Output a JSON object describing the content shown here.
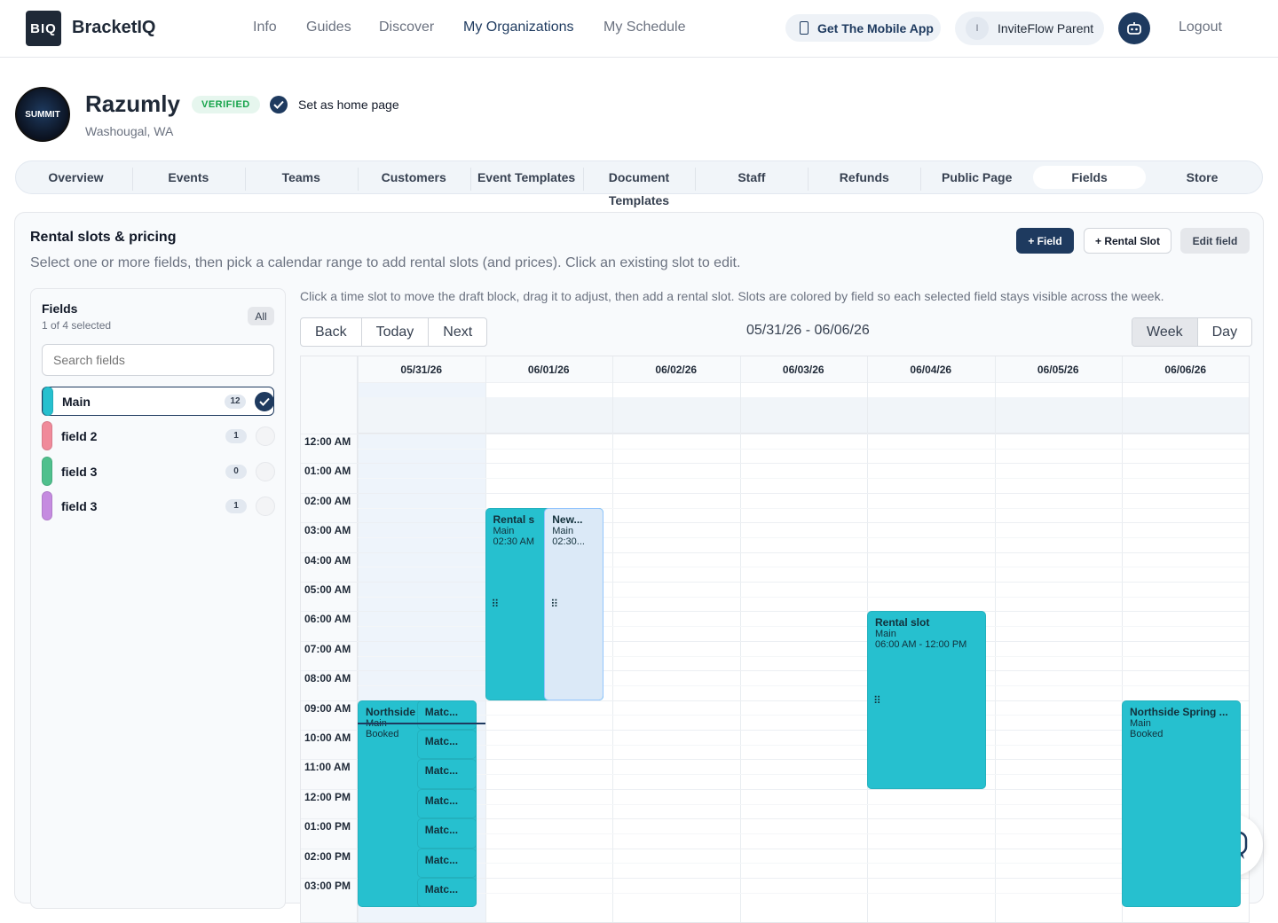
{
  "app": {
    "logo_mark": "BIQ",
    "brand": "BracketIQ"
  },
  "nav": {
    "items": [
      "Info",
      "Guides",
      "Discover",
      "My Organizations",
      "My Schedule"
    ],
    "active": "My Organizations"
  },
  "header_actions": {
    "mobile_app": "Get The Mobile App",
    "user_initial": "I",
    "user_name": "InviteFlow Parent",
    "logout": "Logout"
  },
  "org": {
    "name": "Razumly",
    "badge": "VERIFIED",
    "home_page_label": "Set as home page",
    "location": "Washougal, WA",
    "logo_text": "SUMMIT"
  },
  "tabs": [
    "Overview",
    "Events",
    "Teams",
    "Customers",
    "Event Templates",
    "Document Templates",
    "Staff",
    "Refunds",
    "Public Page",
    "Fields",
    "Store"
  ],
  "active_tab": "Fields",
  "rental": {
    "title": "Rental slots & pricing",
    "subtitle": "Select one or more fields, then pick a calendar range to add rental slots (and prices). Click an existing slot to edit.",
    "buttons": {
      "add_field": "+ Field",
      "add_slot": "+ Rental Slot",
      "edit_field": "Edit field"
    }
  },
  "fields_panel": {
    "title": "Fields",
    "count": "1 of 4 selected",
    "all": "All",
    "search_placeholder": "Search fields",
    "items": [
      {
        "name": "Main",
        "count": "12",
        "color": "#26c0cf",
        "selected": true
      },
      {
        "name": "field 2",
        "count": "1",
        "color": "#f08a9a",
        "selected": false
      },
      {
        "name": "field 3",
        "count": "0",
        "color": "#4fc08d",
        "selected": false
      },
      {
        "name": "field 3",
        "count": "1",
        "color": "#c58be0",
        "selected": false
      }
    ]
  },
  "calendar": {
    "hint": "Click a time slot to move the draft block, drag it to adjust, then add a rental slot. Slots are colored by field so each selected field stays visible across the week.",
    "nav": [
      "Back",
      "Today",
      "Next"
    ],
    "range": "05/31/26 - 06/06/26",
    "views": [
      "Week",
      "Day"
    ],
    "active_view": "Week",
    "days": [
      "05/31/26",
      "06/01/26",
      "06/02/26",
      "06/03/26",
      "06/04/26",
      "06/05/26",
      "06/06/26"
    ],
    "times": [
      "12:00 AM",
      "01:00 AM",
      "02:00 AM",
      "03:00 AM",
      "04:00 AM",
      "05:00 AM",
      "06:00 AM",
      "07:00 AM",
      "08:00 AM",
      "09:00 AM",
      "10:00 AM",
      "11:00 AM",
      "12:00 PM",
      "01:00 PM",
      "02:00 PM",
      "03:00 PM"
    ],
    "events": [
      {
        "day": 1,
        "start": 2.5,
        "end": 9,
        "lane": 0,
        "lanes": 2,
        "title": "Rental s",
        "line1": "Main",
        "line2": "02:30 AM",
        "draft": false,
        "grip": true
      },
      {
        "day": 1,
        "start": 2.5,
        "end": 9,
        "lane": 1,
        "lanes": 2,
        "title": "New...",
        "line1": "Main",
        "line2": "02:30...",
        "draft": true,
        "grip": true
      },
      {
        "day": 4,
        "start": 6,
        "end": 12,
        "lane": 0,
        "lanes": 1,
        "title": "Rental slot",
        "line1": "Main",
        "line2": "06:00 AM - 12:00 PM",
        "draft": false,
        "grip": true
      },
      {
        "day": 0,
        "start": 9,
        "end": 16,
        "lane": 0,
        "lanes": 1,
        "title": "Northside",
        "line1": "Main",
        "line2": "Booked",
        "draft": false,
        "grip": false
      },
      {
        "day": 0,
        "start": 9,
        "end": 10,
        "lane": 1,
        "lanes": 2,
        "title": "Matc...",
        "line1": "",
        "line2": "",
        "draft": false,
        "grip": false
      },
      {
        "day": 0,
        "start": 10,
        "end": 11,
        "lane": 1,
        "lanes": 2,
        "title": "Matc...",
        "line1": "",
        "line2": "",
        "draft": false,
        "grip": false
      },
      {
        "day": 0,
        "start": 11,
        "end": 12,
        "lane": 1,
        "lanes": 2,
        "title": "Matc...",
        "line1": "",
        "line2": "",
        "draft": false,
        "grip": false
      },
      {
        "day": 0,
        "start": 12,
        "end": 13,
        "lane": 1,
        "lanes": 2,
        "title": "Matc...",
        "line1": "",
        "line2": "",
        "draft": false,
        "grip": false
      },
      {
        "day": 0,
        "start": 13,
        "end": 14,
        "lane": 1,
        "lanes": 2,
        "title": "Matc...",
        "line1": "",
        "line2": "",
        "draft": false,
        "grip": false
      },
      {
        "day": 0,
        "start": 14,
        "end": 15,
        "lane": 1,
        "lanes": 2,
        "title": "Matc...",
        "line1": "",
        "line2": "",
        "draft": false,
        "grip": false
      },
      {
        "day": 0,
        "start": 15,
        "end": 16,
        "lane": 1,
        "lanes": 2,
        "title": "Matc...",
        "line1": "",
        "line2": "",
        "draft": false,
        "grip": false
      },
      {
        "day": 6,
        "start": 9,
        "end": 16,
        "lane": 0,
        "lanes": 1,
        "title": "Northside Spring ...",
        "line1": "Main",
        "line2": "Booked",
        "draft": false,
        "grip": false
      }
    ]
  }
}
